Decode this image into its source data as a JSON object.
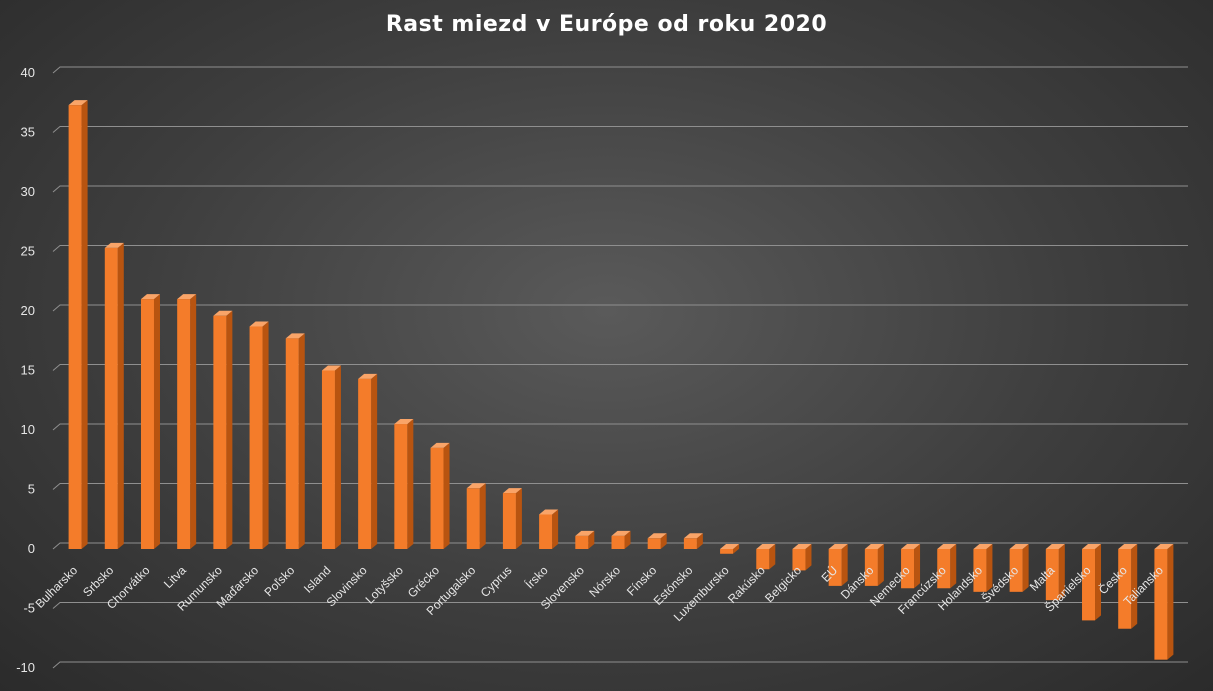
{
  "chart_data": {
    "type": "bar",
    "title": "Rast miezd v Európe od roku 2020",
    "xlabel": "",
    "ylabel": "",
    "ylim": [
      -10,
      40
    ],
    "yticks": [
      -10,
      -5,
      0,
      5,
      10,
      15,
      20,
      25,
      30,
      35,
      40
    ],
    "grid": true,
    "bar_color": "#f47c2a",
    "categories": [
      "Bulharsko",
      "Srbsko",
      "Chorvátko",
      "Litva",
      "Rumunsko",
      "Maďarsko",
      "Poľsko",
      "Island",
      "Slovinsko",
      "Lotyšsko",
      "Grécko",
      "Portugalsko",
      "Cyprus",
      "Írsko",
      "Slovensko",
      "Nórsko",
      "Fínsko",
      "Estónsko",
      "Luxembursko",
      "Rakúsko",
      "Belgicko",
      "EÚ",
      "Dánsko",
      "Nemecko",
      "Francúzsko",
      "Holandsko",
      "Švédsko",
      "Malta",
      "Španielsko",
      "Česko",
      "Taliansko"
    ],
    "values": [
      37.3,
      25.3,
      21.0,
      21.0,
      19.6,
      18.7,
      17.7,
      15.0,
      14.3,
      10.5,
      8.5,
      5.1,
      4.7,
      2.9,
      1.1,
      1.1,
      0.9,
      0.9,
      -0.4,
      -1.7,
      -1.8,
      -3.1,
      -3.1,
      -3.3,
      -3.3,
      -3.6,
      -3.6,
      -4.3,
      -6.0,
      -6.7,
      -9.3
    ]
  }
}
